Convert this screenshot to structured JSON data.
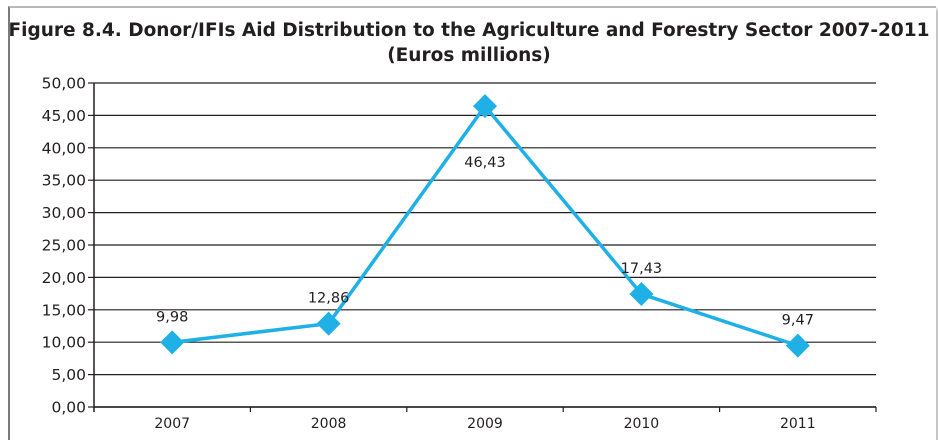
{
  "chart_data": {
    "type": "line",
    "title": "Figure 8.4. Donor/IFIs Aid Distribution to the Agriculture and Forestry Sector 2007-2011",
    "subtitle": "(Euros millions)",
    "categories": [
      "2007",
      "2008",
      "2009",
      "2010",
      "2011"
    ],
    "series": [
      {
        "values": [
          9.98,
          12.86,
          46.43,
          17.43,
          9.47
        ],
        "data_labels": [
          "9,98",
          "12,86",
          "46,43",
          "17,43",
          "9,47"
        ]
      }
    ],
    "y_ticks": [
      "0,00",
      "5,00",
      "10,00",
      "15,00",
      "20,00",
      "25,00",
      "30,00",
      "35,00",
      "40,00",
      "45,00",
      "50,00"
    ],
    "ylim": [
      0,
      50
    ],
    "xlabel": "",
    "ylabel": "",
    "grid": "horizontal",
    "marker": "diamond",
    "line_color": "#1fb0e6",
    "grid_color": "#231f20"
  }
}
